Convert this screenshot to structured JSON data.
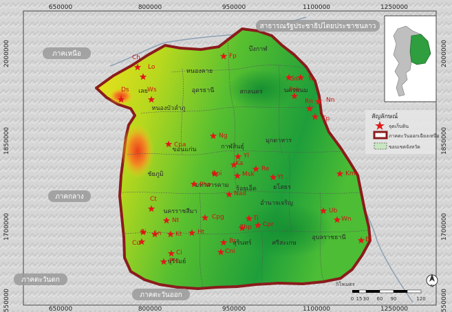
{
  "grid": {
    "x_labels": [
      "650000",
      "800000",
      "950000",
      "1100000",
      "1250000"
    ],
    "y_labels": [
      "2000000",
      "1850000",
      "1700000",
      "1550000"
    ]
  },
  "regions": {
    "north": "ภาคเหนือ",
    "central": "ภาคกลาง",
    "west": "ภาคตะวันตก",
    "east": "ภาคตะวันออก",
    "laos": "สาธารณรัฐประชาธิปไตยประชาชนลาว"
  },
  "provinces": [
    {
      "name": "บึงกาฬ"
    },
    {
      "name": "หนองคาย"
    },
    {
      "name": "อุดรธานี"
    },
    {
      "name": "สกลนคร"
    },
    {
      "name": "นครพนม"
    },
    {
      "name": "เลย"
    },
    {
      "name": "หนองบัวลำภู"
    },
    {
      "name": "กาฬสินธุ์"
    },
    {
      "name": "มุกดาหาร"
    },
    {
      "name": "ขอนแก่น"
    },
    {
      "name": "ชัยภูมิ"
    },
    {
      "name": "มหาสารคาม"
    },
    {
      "name": "ร้อยเอ็ด"
    },
    {
      "name": "ยโสธร"
    },
    {
      "name": "อำนาจเจริญ"
    },
    {
      "name": "นครราชสีมา"
    },
    {
      "name": "สุรินทร์"
    },
    {
      "name": "ศรีสะเกษ"
    },
    {
      "name": "อุบลราชธานี"
    },
    {
      "name": "บุรีรัมย์"
    }
  ],
  "sites": [
    {
      "code": "Ch"
    },
    {
      "code": "Lo"
    },
    {
      "code": "Fp"
    },
    {
      "code": "Ds"
    },
    {
      "code": "Ws"
    },
    {
      "code": "Ss"
    },
    {
      "code": "Tu"
    },
    {
      "code": "Pok"
    },
    {
      "code": "Nn"
    },
    {
      "code": "Rn"
    },
    {
      "code": "Tp"
    },
    {
      "code": "Ng"
    },
    {
      "code": "Cpa"
    },
    {
      "code": "Yl"
    },
    {
      "code": "Ka"
    },
    {
      "code": "Re"
    },
    {
      "code": "Bpi"
    },
    {
      "code": "Msk"
    },
    {
      "code": "Yt"
    },
    {
      "code": "Kmr"
    },
    {
      "code": "Pho"
    },
    {
      "code": "Nad"
    },
    {
      "code": "Ct"
    },
    {
      "code": "Ub"
    },
    {
      "code": "Wn"
    },
    {
      "code": "Cpg"
    },
    {
      "code": "Ti"
    },
    {
      "code": "Nt"
    },
    {
      "code": "Cpr"
    },
    {
      "code": "Chp"
    },
    {
      "code": "Si"
    },
    {
      "code": "Sn"
    },
    {
      "code": "Kt"
    },
    {
      "code": "Ht"
    },
    {
      "code": "Br"
    },
    {
      "code": "Bi"
    },
    {
      "code": "Cu"
    },
    {
      "code": "Cni"
    },
    {
      "code": "Ci"
    },
    {
      "code": "Ptc"
    }
  ],
  "legend": {
    "title": "สัญลักษณ์",
    "items": [
      {
        "label": "จุดเก็บดิน"
      },
      {
        "label": "ภาคตะวันออกเฉียงเหนือ"
      },
      {
        "label": "ขอบเขตจังหวัด"
      }
    ]
  },
  "scale": {
    "unit": "กิโลเมตร",
    "ticks": [
      "0",
      "15",
      "30",
      "60",
      "90",
      "120"
    ]
  },
  "colors": {
    "background": "#d9d9d9",
    "boundary": "#8a1c1c",
    "site_marker": "#e01818",
    "lowland": "#1fa43a",
    "upland": "#f0e020"
  }
}
